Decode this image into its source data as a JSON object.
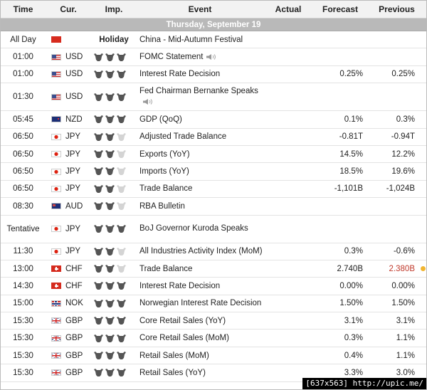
{
  "headers": {
    "time": "Time",
    "currency": "Cur.",
    "importance": "Imp.",
    "event": "Event",
    "actual": "Actual",
    "forecast": "Forecast",
    "previous": "Previous"
  },
  "date_label": "Thursday, September 19",
  "holiday_label": "Holiday",
  "watermark": "[637x563] http://upic.me/",
  "colors": {
    "header_bg": "#f2f2f2",
    "date_row_bg": "#b9b9b9",
    "previous_worse": "#c0392b",
    "indicator_dot": "#f1b531"
  },
  "rows": [
    {
      "time": "All Day",
      "flag": "cn",
      "currency": "",
      "holiday": true,
      "importance": 0,
      "event": "China - Mid-Autumn Festival",
      "event_line2": "",
      "speaker": false,
      "actual": "",
      "forecast": "",
      "previous": ""
    },
    {
      "time": "01:00",
      "flag": "us",
      "currency": "USD",
      "holiday": false,
      "importance": 3,
      "event": "FOMC Statement",
      "event_line2": "",
      "speaker": true,
      "actual": "",
      "forecast": "",
      "previous": ""
    },
    {
      "time": "01:00",
      "flag": "us",
      "currency": "USD",
      "holiday": false,
      "importance": 3,
      "event": "Interest Rate Decision",
      "event_line2": "",
      "speaker": false,
      "actual": "",
      "forecast": "0.25%",
      "previous": "0.25%"
    },
    {
      "time": "01:30",
      "flag": "us",
      "currency": "USD",
      "holiday": false,
      "importance": 3,
      "event": "Fed Chairman Bernanke Speaks",
      "event_line2": "",
      "speaker": true,
      "tall": true,
      "actual": "",
      "forecast": "",
      "previous": ""
    },
    {
      "time": "05:45",
      "flag": "nz",
      "currency": "NZD",
      "holiday": false,
      "importance": 3,
      "event": "GDP (QoQ)",
      "event_line2": "",
      "speaker": false,
      "actual": "",
      "forecast": "0.1%",
      "previous": "0.3%"
    },
    {
      "time": "06:50",
      "flag": "jp",
      "currency": "JPY",
      "holiday": false,
      "importance": 2,
      "event": "Adjusted Trade Balance",
      "event_line2": "",
      "speaker": false,
      "actual": "",
      "forecast": "-0.81T",
      "previous": "-0.94T"
    },
    {
      "time": "06:50",
      "flag": "jp",
      "currency": "JPY",
      "holiday": false,
      "importance": 2,
      "event": "Exports (YoY)",
      "event_line2": "",
      "speaker": false,
      "actual": "",
      "forecast": "14.5%",
      "previous": "12.2%"
    },
    {
      "time": "06:50",
      "flag": "jp",
      "currency": "JPY",
      "holiday": false,
      "importance": 2,
      "event": "Imports (YoY)",
      "event_line2": "",
      "speaker": false,
      "actual": "",
      "forecast": "18.5%",
      "previous": "19.6%"
    },
    {
      "time": "06:50",
      "flag": "jp",
      "currency": "JPY",
      "holiday": false,
      "importance": 2,
      "event": "Trade Balance",
      "event_line2": "",
      "speaker": false,
      "actual": "",
      "forecast": "-1,101B",
      "previous": "-1,024B"
    },
    {
      "time": "08:30",
      "flag": "au",
      "currency": "AUD",
      "holiday": false,
      "importance": 2,
      "event": "RBA Bulletin",
      "event_line2": "",
      "speaker": false,
      "actual": "",
      "forecast": "",
      "previous": ""
    },
    {
      "time": "Tentative",
      "flag": "jp",
      "currency": "JPY",
      "holiday": false,
      "importance": 3,
      "event": "BoJ Governor Kuroda Speaks",
      "event_line2": "",
      "speaker": false,
      "tall": true,
      "actual": "",
      "forecast": "",
      "previous": ""
    },
    {
      "time": "11:30",
      "flag": "jp",
      "currency": "JPY",
      "holiday": false,
      "importance": 2,
      "event": "All Industries Activity Index (MoM)",
      "event_line2": "",
      "speaker": false,
      "actual": "",
      "forecast": "0.3%",
      "previous": "-0.6%"
    },
    {
      "time": "13:00",
      "flag": "ch",
      "currency": "CHF",
      "holiday": false,
      "importance": 2,
      "event": "Trade Balance",
      "event_line2": "",
      "speaker": false,
      "actual": "",
      "forecast": "2.740B",
      "previous": "2.380B",
      "previous_red": true,
      "dot": true
    },
    {
      "time": "14:30",
      "flag": "ch",
      "currency": "CHF",
      "holiday": false,
      "importance": 3,
      "event": "Interest Rate Decision",
      "event_line2": "",
      "speaker": false,
      "actual": "",
      "forecast": "0.00%",
      "previous": "0.00%"
    },
    {
      "time": "15:00",
      "flag": "no",
      "currency": "NOK",
      "holiday": false,
      "importance": 3,
      "event": "Norwegian Interest Rate Decision",
      "event_line2": "",
      "speaker": false,
      "actual": "",
      "forecast": "1.50%",
      "previous": "1.50%"
    },
    {
      "time": "15:30",
      "flag": "gb",
      "currency": "GBP",
      "holiday": false,
      "importance": 3,
      "event": "Core Retail Sales (YoY)",
      "event_line2": "",
      "speaker": false,
      "actual": "",
      "forecast": "3.1%",
      "previous": "3.1%"
    },
    {
      "time": "15:30",
      "flag": "gb",
      "currency": "GBP",
      "holiday": false,
      "importance": 3,
      "event": "Core Retail Sales (MoM)",
      "event_line2": "",
      "speaker": false,
      "actual": "",
      "forecast": "0.3%",
      "previous": "1.1%"
    },
    {
      "time": "15:30",
      "flag": "gb",
      "currency": "GBP",
      "holiday": false,
      "importance": 3,
      "event": "Retail Sales (MoM)",
      "event_line2": "",
      "speaker": false,
      "actual": "",
      "forecast": "0.4%",
      "previous": "1.1%"
    },
    {
      "time": "15:30",
      "flag": "gb",
      "currency": "GBP",
      "holiday": false,
      "importance": 3,
      "event": "Retail Sales (YoY)",
      "event_line2": "",
      "speaker": false,
      "actual": "",
      "forecast": "3.3%",
      "previous": "3.0%"
    }
  ]
}
